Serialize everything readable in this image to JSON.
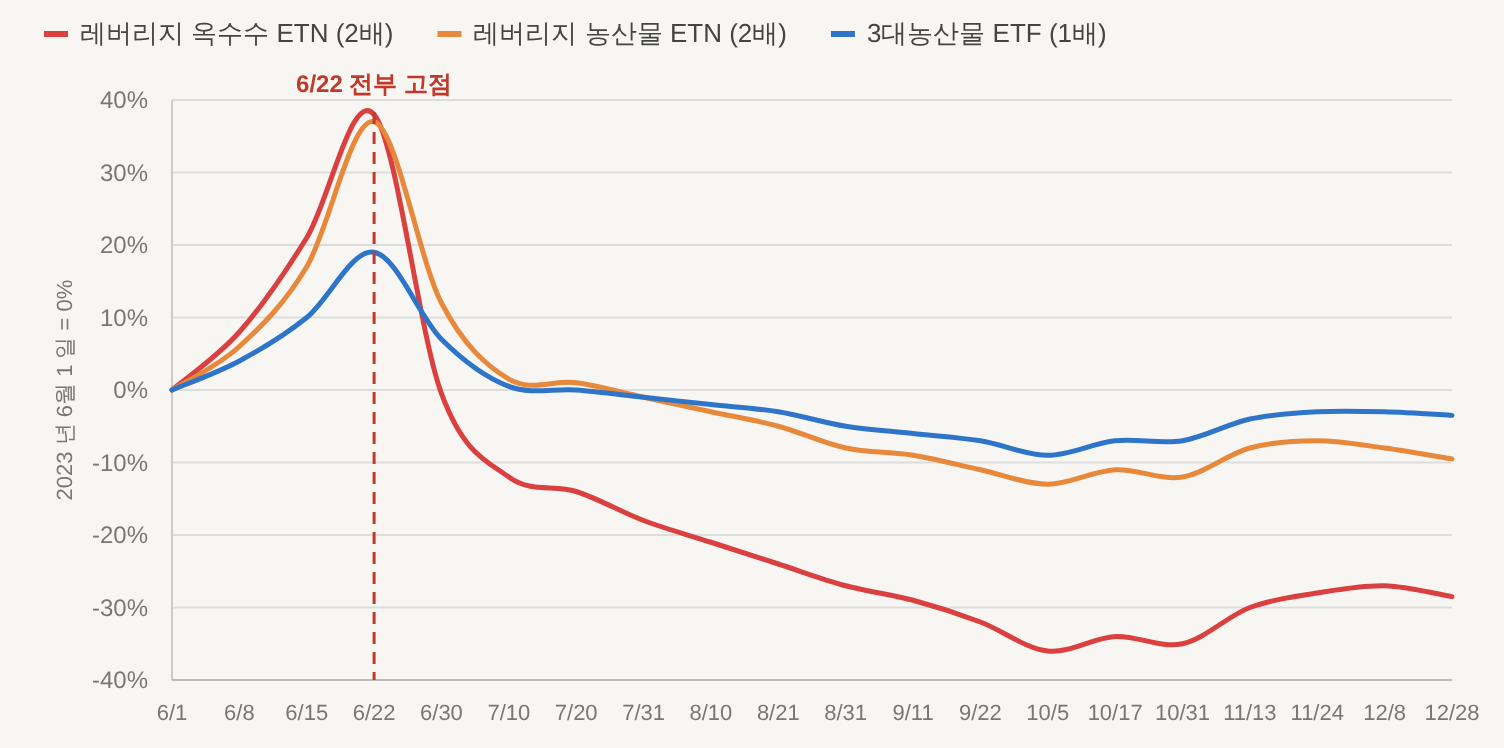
{
  "chart_data": {
    "type": "line",
    "ylabel": "2023 년 6월 1 일 = 0%",
    "categories": [
      "6/1",
      "6/8",
      "6/15",
      "6/22",
      "6/30",
      "7/10",
      "7/20",
      "7/31",
      "8/10",
      "8/21",
      "8/31",
      "9/11",
      "9/22",
      "10/5",
      "10/17",
      "10/31",
      "11/13",
      "11/24",
      "12/8",
      "12/28"
    ],
    "series": [
      {
        "name": "레버리지 옥수수 ETN (2배)",
        "color": "#d9403f",
        "values": [
          0,
          8,
          21,
          38,
          -0.5,
          -12,
          -14,
          -18,
          -21,
          -24,
          -27,
          -29,
          -32,
          -36,
          -34,
          -35,
          -30,
          -28,
          -27,
          -28.5
        ]
      },
      {
        "name": "레버리지 농산물 ETN (2배)",
        "color": "#e8883a",
        "values": [
          0,
          6,
          17,
          37,
          12,
          1.5,
          1,
          -1,
          -3,
          -5,
          -8,
          -9,
          -11,
          -13,
          -11,
          -12,
          -8,
          -7,
          -8,
          -9.5
        ]
      },
      {
        "name": "3대농산물 ETF (1배)",
        "color": "#2e75c9",
        "values": [
          0,
          4,
          10,
          19,
          7,
          0.5,
          0,
          -1,
          -2,
          -3,
          -5,
          -6,
          -7,
          -9,
          -7,
          -7,
          -4,
          -3,
          -3,
          -3.5
        ]
      }
    ],
    "ylim": [
      -40,
      40
    ],
    "yticks": [
      {
        "value": -40,
        "label": "-40%"
      },
      {
        "value": -30,
        "label": "-30%"
      },
      {
        "value": -20,
        "label": "-20%"
      },
      {
        "value": -10,
        "label": "-10%"
      },
      {
        "value": 0,
        "label": "0%"
      },
      {
        "value": 10,
        "label": "10%"
      },
      {
        "value": 20,
        "label": "20%"
      },
      {
        "value": 30,
        "label": "30%"
      },
      {
        "value": 40,
        "label": "40%"
      }
    ],
    "ref_lines": [
      {
        "axis": "x",
        "value": "6/22",
        "label": "6/22 전부 고점",
        "color": "#c0392b",
        "line_style": "dashed"
      }
    ],
    "grid": "y",
    "legend": "top left",
    "marker": "none",
    "line_style": "solid"
  }
}
